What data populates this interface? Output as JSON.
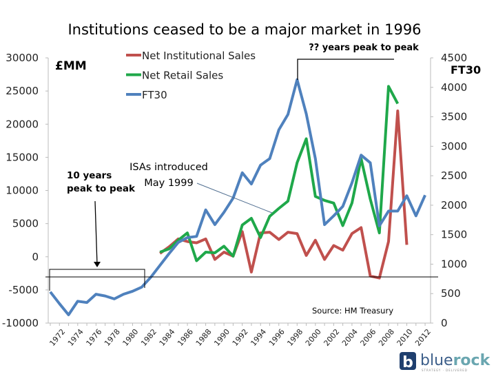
{
  "chart_data": {
    "type": "line",
    "title": "Institutions ceased to be a major market in 1996",
    "left_axis": {
      "label": "£MM",
      "ylim": [
        -10000,
        30000
      ],
      "ticks": [
        -10000,
        -5000,
        0,
        5000,
        10000,
        15000,
        20000,
        25000,
        30000
      ]
    },
    "right_axis": {
      "label": "FT30",
      "ylim": [
        0,
        4500
      ],
      "ticks": [
        0,
        500,
        1000,
        1500,
        2000,
        2500,
        3000,
        3500,
        4000,
        4500
      ]
    },
    "x_tick_labels": [
      "1972",
      "1974",
      "1976",
      "1978",
      "1980",
      "1982",
      "1984",
      "1986",
      "1988",
      "1990",
      "1992",
      "1994",
      "1996",
      "1998",
      "2000",
      "2002",
      "2004",
      "2006",
      "2008",
      "2010",
      "2012"
    ],
    "grid": false,
    "legend_position": "top-center",
    "series": [
      {
        "name": "Net Institutional Sales",
        "axis": "left",
        "color": "#c0504d",
        "x": [
          1984,
          1985,
          1986,
          1987,
          1988,
          1989,
          1990,
          1991,
          1992,
          1993,
          1994,
          1995,
          1996,
          1997,
          1998,
          1999,
          2000,
          2001,
          2002,
          2003,
          2004,
          2005,
          2006,
          2007,
          2008,
          2009,
          2010,
          2011
        ],
        "values": [
          500,
          1500,
          2700,
          2300,
          2100,
          2700,
          -400,
          700,
          100,
          3800,
          -2300,
          3600,
          3700,
          2600,
          3700,
          3500,
          200,
          2500,
          -400,
          1700,
          1000,
          3500,
          4400,
          -2900,
          -3200,
          2300,
          22000,
          1800
        ]
      },
      {
        "name": "Net Retail Sales",
        "axis": "left",
        "color": "#1fa84a",
        "x": [
          1984,
          1985,
          1986,
          1987,
          1988,
          1989,
          1990,
          1991,
          1992,
          1993,
          1994,
          1995,
          1996,
          1997,
          1998,
          1999,
          2000,
          2001,
          2002,
          2003,
          2004,
          2005,
          2006,
          2007,
          2008,
          2009,
          2010
        ],
        "values": [
          700,
          1200,
          2500,
          3600,
          -600,
          700,
          600,
          1600,
          100,
          4800,
          5800,
          2900,
          6100,
          7300,
          8400,
          14200,
          17800,
          9100,
          8500,
          8100,
          4700,
          8100,
          14800,
          8700,
          3600,
          25700,
          23100
        ]
      },
      {
        "name": "FT30",
        "axis": "right",
        "color": "#4f81bd",
        "x": [
          1972,
          1973,
          1974,
          1975,
          1976,
          1977,
          1978,
          1979,
          1980,
          1981,
          1982,
          1983,
          1984,
          1985,
          1986,
          1987,
          1988,
          1989,
          1990,
          1991,
          1992,
          1993,
          1994,
          1995,
          1996,
          1997,
          1998,
          1999,
          2000,
          2001,
          2002,
          2003,
          2004,
          2005,
          2006,
          2007,
          2008,
          2009,
          2010,
          2011,
          2012,
          2013
        ],
        "values": [
          530,
          330,
          140,
          370,
          350,
          490,
          460,
          410,
          490,
          540,
          610,
          780,
          980,
          1180,
          1370,
          1450,
          1470,
          1920,
          1670,
          1880,
          2120,
          2550,
          2360,
          2680,
          2790,
          3280,
          3540,
          4130,
          3550,
          2790,
          1670,
          1820,
          1980,
          2380,
          2850,
          2720,
          1650,
          1900,
          1900,
          2160,
          1820,
          2170
        ]
      }
    ],
    "annotations": {
      "isa": [
        "ISAs introduced",
        "May 1999"
      ],
      "ten_years": [
        "10 years",
        "peak to peak"
      ],
      "unknown_years": "?? years peak to peak",
      "source": "Source: HM Treasury"
    }
  },
  "logo": {
    "text_light": "blue",
    "text_bold": "rock",
    "tagline": "STRATEGY · DELIVERED",
    "glyph": "b"
  }
}
